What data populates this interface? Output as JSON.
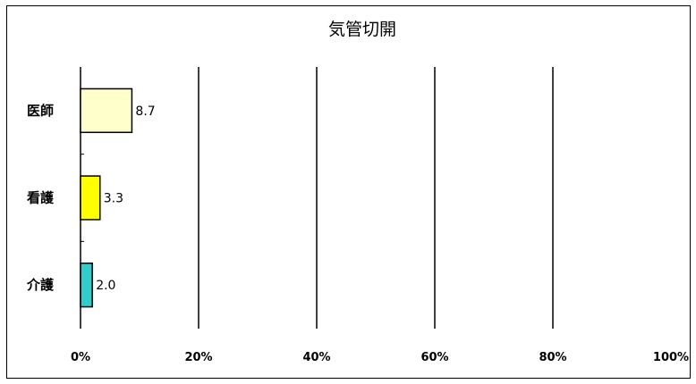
{
  "chart_data": {
    "type": "bar",
    "orientation": "horizontal",
    "title": "気管切開",
    "categories": [
      "医師",
      "看護",
      "介護"
    ],
    "values": [
      8.7,
      3.3,
      2.0
    ],
    "value_labels": [
      "8.7",
      "3.3",
      "2.0"
    ],
    "bar_colors": [
      "#ffffcc",
      "#ffff00",
      "#33cccc"
    ],
    "xlim": [
      0,
      100
    ],
    "x_ticks": [
      "0%",
      "20%",
      "40%",
      "60%",
      "80%",
      "100%"
    ],
    "grid": true,
    "xlabel": "",
    "ylabel": ""
  }
}
